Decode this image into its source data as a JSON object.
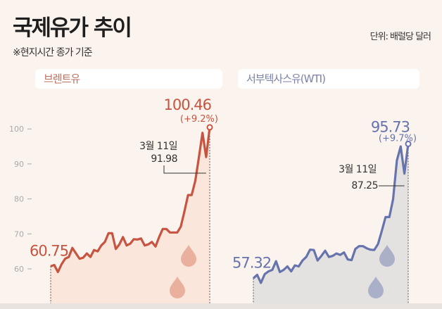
{
  "header": {
    "title": "국제유가 추이",
    "subtitle": "※현지시간 종가 기준",
    "unit": "단위: 배럴당 달러"
  },
  "chart_data": [
    {
      "type": "line",
      "name": "브렌트유",
      "color": "#c75440",
      "fill": "#fbe6dc",
      "yticks": [
        "60",
        "70",
        "80",
        "90",
        "100"
      ],
      "ytick_values": [
        60,
        70,
        80,
        90,
        100
      ],
      "ylim": [
        52,
        105
      ],
      "start_label": "60.75",
      "end_label": "100.46",
      "end_change": "(+9.2%)",
      "annotation": {
        "date": "3월 11일",
        "value": "91.98"
      },
      "values": [
        60.75,
        61.1,
        59.1,
        61.3,
        62.9,
        63.4,
        66.0,
        64.4,
        62.9,
        63.2,
        64.4,
        63.4,
        65.4,
        65.0,
        66.7,
        67.7,
        70.2,
        70.2,
        65.7,
        67.0,
        69.1,
        66.7,
        67.2,
        68.5,
        68.4,
        68.7,
        66.7,
        67.0,
        67.7,
        66.4,
        69.1,
        71.4,
        71.4,
        70.4,
        70.4,
        70.4,
        72.1,
        76.4,
        81.1,
        81.1,
        85.2,
        91.9,
        98.9,
        91.98,
        100.46
      ],
      "annotation_index": 43
    },
    {
      "type": "line",
      "name": "서부텍사스유(WTI)",
      "color": "#6673ad",
      "fill": "#e4e1e1",
      "ylim": [
        52,
        105
      ],
      "start_label": "57.32",
      "end_label": "95.73",
      "end_change": "(+9.7%)",
      "annotation": {
        "date": "3월 11일",
        "value": "87.25"
      },
      "values": [
        57.32,
        58.3,
        56.0,
        58.5,
        59.3,
        59.7,
        62.2,
        59.1,
        59.7,
        60.7,
        59.3,
        61.0,
        60.7,
        62.4,
        63.4,
        65.5,
        65.4,
        62.4,
        63.7,
        65.2,
        63.4,
        63.7,
        64.4,
        64.0,
        64.7,
        62.7,
        62.5,
        65.7,
        66.5,
        66.5,
        65.9,
        65.5,
        65.4,
        67.1,
        70.8,
        74.8,
        74.8,
        79.9,
        91.0,
        95.0,
        87.25,
        95.73
      ],
      "annotation_index": 40
    }
  ]
}
